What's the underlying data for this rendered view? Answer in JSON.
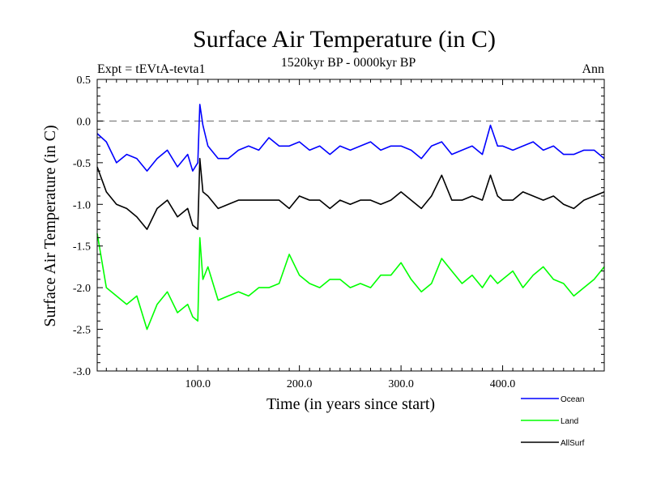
{
  "chart_data": {
    "type": "line",
    "title": "Surface Air Temperature (in C)",
    "subtitle": "1520kyr BP - 0000kyr BP",
    "experiment_label": "Expt = tEVtA-tevta1",
    "period_label": "Ann",
    "xlabel": "Time (in years since start)",
    "ylabel": "Surface Air Temperature (in C)",
    "xlim": [
      1,
      500
    ],
    "ylim": [
      -3.0,
      0.5
    ],
    "x_ticks": [
      100,
      200,
      300,
      400
    ],
    "x_tick_labels": [
      "100.0",
      "200.0",
      "300.0",
      "400.0"
    ],
    "y_ticks": [
      -3.0,
      -2.5,
      -2.0,
      -1.5,
      -1.0,
      -0.5,
      0.0,
      0.5
    ],
    "y_tick_labels": [
      "-3.0",
      "-2.5",
      "-2.0",
      "-1.5",
      "-1.0",
      "-0.5",
      "0.0",
      "0.5"
    ],
    "reference_line": 0.0,
    "x": [
      1,
      10,
      20,
      30,
      40,
      50,
      60,
      70,
      80,
      90,
      95,
      100,
      102,
      105,
      110,
      120,
      130,
      140,
      150,
      160,
      170,
      180,
      190,
      200,
      210,
      220,
      230,
      240,
      250,
      260,
      270,
      280,
      290,
      300,
      310,
      320,
      330,
      340,
      350,
      360,
      370,
      380,
      388,
      395,
      400,
      410,
      420,
      430,
      440,
      450,
      460,
      470,
      480,
      490,
      500
    ],
    "series": [
      {
        "name": "Ocean",
        "color": "#0000ff",
        "values": [
          -0.15,
          -0.25,
          -0.5,
          -0.4,
          -0.45,
          -0.6,
          -0.45,
          -0.35,
          -0.55,
          -0.4,
          -0.6,
          -0.5,
          0.2,
          -0.05,
          -0.3,
          -0.45,
          -0.45,
          -0.35,
          -0.3,
          -0.35,
          -0.2,
          -0.3,
          -0.3,
          -0.25,
          -0.35,
          -0.3,
          -0.4,
          -0.3,
          -0.35,
          -0.3,
          -0.25,
          -0.35,
          -0.3,
          -0.3,
          -0.35,
          -0.45,
          -0.3,
          -0.25,
          -0.4,
          -0.35,
          -0.3,
          -0.4,
          -0.05,
          -0.3,
          -0.3,
          -0.35,
          -0.3,
          -0.25,
          -0.35,
          -0.3,
          -0.4,
          -0.4,
          -0.35,
          -0.35,
          -0.45
        ]
      },
      {
        "name": "Land",
        "color": "#00ff00",
        "values": [
          -1.35,
          -2.0,
          -2.1,
          -2.2,
          -2.1,
          -2.5,
          -2.2,
          -2.05,
          -2.3,
          -2.2,
          -2.35,
          -2.4,
          -1.4,
          -1.9,
          -1.75,
          -2.15,
          -2.1,
          -2.05,
          -2.1,
          -2.0,
          -2.0,
          -1.95,
          -1.6,
          -1.85,
          -1.95,
          -2.0,
          -1.9,
          -1.9,
          -2.0,
          -1.95,
          -2.0,
          -1.85,
          -1.85,
          -1.7,
          -1.9,
          -2.05,
          -1.95,
          -1.65,
          -1.8,
          -1.95,
          -1.85,
          -2.0,
          -1.85,
          -1.95,
          -1.9,
          -1.8,
          -2.0,
          -1.85,
          -1.75,
          -1.9,
          -1.95,
          -2.1,
          -2.0,
          -1.9,
          -1.75
        ]
      },
      {
        "name": "AllSurf",
        "color": "#000000",
        "values": [
          -0.55,
          -0.85,
          -1.0,
          -1.05,
          -1.15,
          -1.3,
          -1.05,
          -0.95,
          -1.15,
          -1.05,
          -1.25,
          -1.3,
          -0.45,
          -0.85,
          -0.9,
          -1.05,
          -1.0,
          -0.95,
          -0.95,
          -0.95,
          -0.95,
          -0.95,
          -1.05,
          -0.9,
          -0.95,
          -0.95,
          -1.05,
          -0.95,
          -1.0,
          -0.95,
          -0.95,
          -1.0,
          -0.95,
          -0.85,
          -0.95,
          -1.05,
          -0.9,
          -0.65,
          -0.95,
          -0.95,
          -0.9,
          -0.95,
          -0.65,
          -0.9,
          -0.95,
          -0.95,
          -0.85,
          -0.9,
          -0.95,
          -0.9,
          -1.0,
          -1.05,
          -0.95,
          -0.9,
          -0.85
        ]
      }
    ]
  }
}
